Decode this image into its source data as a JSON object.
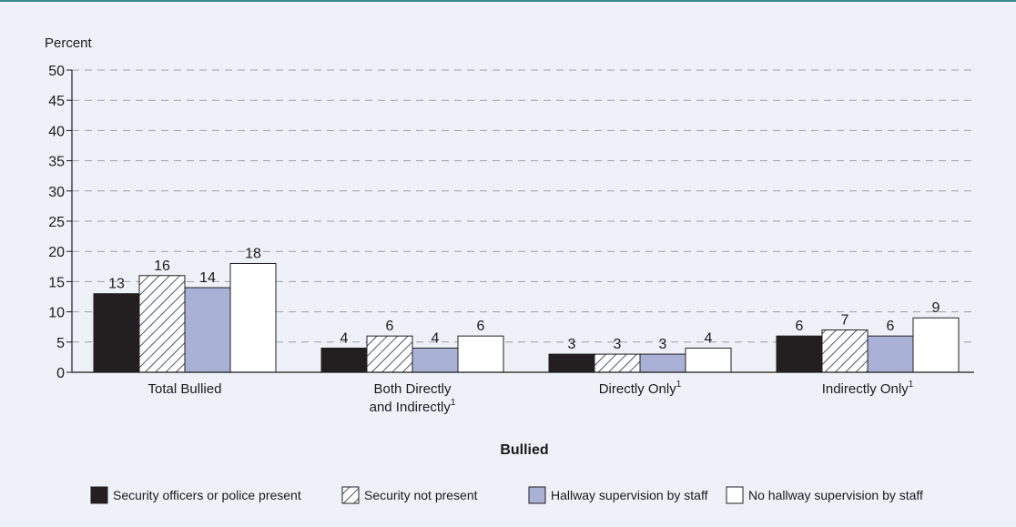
{
  "chart_data": {
    "type": "bar",
    "ylabel": "Percent",
    "xlabel": "Bullied",
    "ylim": [
      0,
      50
    ],
    "yticks": [
      0,
      5,
      10,
      15,
      20,
      25,
      30,
      35,
      40,
      45,
      50
    ],
    "categories": [
      {
        "lines": [
          "Total Bullied"
        ],
        "sup": ""
      },
      {
        "lines": [
          "Both Directly",
          "and Indirectly"
        ],
        "sup": "1"
      },
      {
        "lines": [
          "Directly Only"
        ],
        "sup": "1"
      },
      {
        "lines": [
          "Indirectly Only"
        ],
        "sup": "1"
      }
    ],
    "series": [
      {
        "name": "Security officers or police present",
        "values": [
          13,
          4,
          3,
          6
        ],
        "fill": "#231f20",
        "pattern": "solid"
      },
      {
        "name": "Security not present",
        "values": [
          16,
          6,
          3,
          7
        ],
        "fill": "#ffffff",
        "pattern": "hatch"
      },
      {
        "name": "Hallway supervision by staff",
        "values": [
          14,
          4,
          3,
          6
        ],
        "fill": "#a9b2d6",
        "pattern": "solid"
      },
      {
        "name": "No hallway supervision by staff",
        "values": [
          18,
          6,
          4,
          9
        ],
        "fill": "#ffffff",
        "pattern": "solid"
      }
    ],
    "grid": true,
    "legend_position": "bottom"
  }
}
